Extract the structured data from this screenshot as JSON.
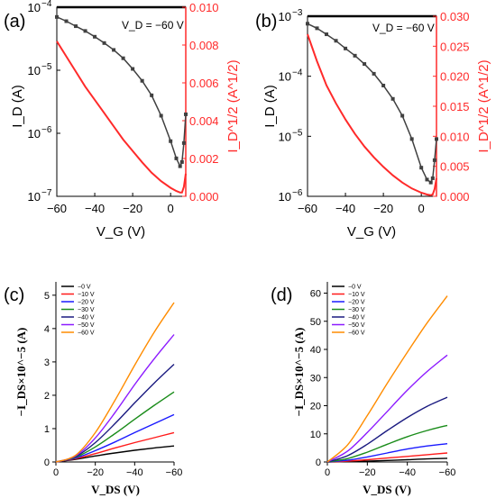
{
  "chart_data": [
    {
      "id": "a",
      "panel_label": "(a)",
      "type": "line",
      "annotation": "V_D = −60 V",
      "xlabel": "V_G (V)",
      "ylabel_left": "I_D (A)",
      "ylabel_right": "I_D^1/2 (A^1/2)",
      "xlim": [
        -60,
        8
      ],
      "ylim_left_log": [
        -7,
        -4
      ],
      "ylim_right": [
        0,
        0.01
      ],
      "x_ticks": [
        -60,
        -40,
        -20,
        0
      ],
      "x_tick_labels": [
        "−60",
        "−40",
        "−20",
        "0"
      ],
      "y_left_ticks": [
        -7,
        -6,
        -5,
        -4
      ],
      "y_left_tick_labels": [
        "10",
        "10",
        "10",
        "10"
      ],
      "y_left_tick_exponents": [
        "−7",
        "−6",
        "−5",
        "−4"
      ],
      "y_right_ticks": [
        0,
        0.002,
        0.004,
        0.006,
        0.008,
        0.01
      ],
      "y_right_tick_labels": [
        "0.000",
        "0.002",
        "0.004",
        "0.006",
        "0.008",
        "0.010"
      ],
      "series": [
        {
          "axis": "left",
          "scale": "log",
          "color": "#404040",
          "markers": true,
          "x": [
            -60,
            -55,
            -50,
            -45,
            -40,
            -35,
            -30,
            -25,
            -20,
            -15,
            -10,
            -5,
            0,
            3,
            5,
            6,
            7,
            8
          ],
          "y": [
            7e-05,
            6e-05,
            5e-05,
            4.2e-05,
            3.4e-05,
            2.7e-05,
            2.1e-05,
            1.55e-05,
            1.05e-05,
            6.8e-06,
            4e-06,
            1.9e-06,
            7.5e-07,
            4e-07,
            3e-07,
            3.5e-07,
            7e-07,
            2e-06
          ]
        },
        {
          "axis": "right",
          "scale": "linear",
          "color": "#ff2a2a",
          "markers": false,
          "x": [
            -60,
            -55,
            -50,
            -45,
            -40,
            -35,
            -30,
            -25,
            -20,
            -15,
            -10,
            -5,
            0,
            3,
            5,
            6,
            7,
            8
          ],
          "y": [
            0.0082,
            0.0074,
            0.0066,
            0.0058,
            0.0051,
            0.0044,
            0.0037,
            0.003,
            0.0024,
            0.0018,
            0.00125,
            0.0008,
            0.00045,
            0.00028,
            0.0002,
            0.0002,
            0.0005,
            0.0012
          ]
        }
      ]
    },
    {
      "id": "b",
      "panel_label": "(b)",
      "type": "line",
      "annotation": "V_D = −60 V",
      "xlabel": "V_G (V)",
      "ylabel_left": "I_D (A)",
      "ylabel_right": "I_D^1/2 (A^1/2)",
      "xlim": [
        -60,
        8
      ],
      "ylim_left_log": [
        -6,
        -3
      ],
      "ylim_right": [
        0,
        0.03
      ],
      "x_ticks": [
        -60,
        -40,
        -20,
        0
      ],
      "x_tick_labels": [
        "−60",
        "−40",
        "−20",
        "0"
      ],
      "y_left_ticks": [
        -6,
        -5,
        -4,
        -3
      ],
      "y_left_tick_labels": [
        "10",
        "10",
        "10",
        "10"
      ],
      "y_left_tick_exponents": [
        "−6",
        "−5",
        "−4",
        "−3"
      ],
      "y_right_ticks": [
        0,
        0.005,
        0.01,
        0.015,
        0.02,
        0.025,
        0.03
      ],
      "y_right_tick_labels": [
        "0.000",
        "0.005",
        "0.010",
        "0.015",
        "0.020",
        "0.025",
        "0.030"
      ],
      "series": [
        {
          "axis": "left",
          "scale": "log",
          "color": "#404040",
          "markers": true,
          "x": [
            -60,
            -55,
            -50,
            -45,
            -40,
            -35,
            -30,
            -25,
            -20,
            -15,
            -10,
            -5,
            0,
            3,
            5,
            6,
            7,
            8
          ],
          "y": [
            0.00075,
            0.00063,
            0.0005,
            0.00039,
            0.00029,
            0.00022,
            0.00016,
            0.00011,
            7e-05,
            4.2e-05,
            2.2e-05,
            9e-06,
            3e-06,
            1.9e-06,
            1.7e-06,
            2e-06,
            4e-06,
            9e-06
          ]
        },
        {
          "axis": "right",
          "scale": "linear",
          "color": "#ff2a2a",
          "markers": false,
          "x": [
            -60,
            -55,
            -50,
            -45,
            -40,
            -35,
            -30,
            -25,
            -20,
            -15,
            -10,
            -5,
            0,
            3,
            5,
            6,
            7,
            8
          ],
          "y": [
            0.027,
            0.0225,
            0.0185,
            0.0155,
            0.0128,
            0.0104,
            0.0083,
            0.0065,
            0.0049,
            0.0035,
            0.0023,
            0.0013,
            0.0006,
            0.0003,
            0.0002,
            0.0003,
            0.0012,
            0.003
          ]
        }
      ]
    },
    {
      "id": "c",
      "panel_label": "(c)",
      "type": "line",
      "xlabel": "V_DS (V)",
      "ylabel": "−I_DS×10^−5 (A)",
      "xlim": [
        0,
        -60
      ],
      "ylim": [
        0,
        5.4
      ],
      "x_ticks": [
        0,
        -20,
        -40,
        -60
      ],
      "x_tick_labels": [
        "0",
        "−20",
        "−40",
        "−60"
      ],
      "y_ticks": [
        0,
        1,
        2,
        3,
        4,
        5
      ],
      "y_tick_labels": [
        "0",
        "1",
        "2",
        "3",
        "4",
        "5"
      ],
      "legend_position": "top-left",
      "series": [
        {
          "name": "−0 V",
          "color": "#000000",
          "x": [
            0,
            -10,
            -20,
            -30,
            -40,
            -50,
            -60
          ],
          "y": [
            0,
            0.08,
            0.18,
            0.27,
            0.35,
            0.42,
            0.48
          ]
        },
        {
          "name": "−10 V",
          "color": "#ff1a1a",
          "x": [
            0,
            -10,
            -20,
            -30,
            -40,
            -50,
            -60
          ],
          "y": [
            0,
            0.1,
            0.25,
            0.42,
            0.58,
            0.73,
            0.88
          ]
        },
        {
          "name": "−20 V",
          "color": "#1a1aff",
          "x": [
            0,
            -10,
            -20,
            -30,
            -40,
            -50,
            -60
          ],
          "y": [
            0,
            0.12,
            0.34,
            0.6,
            0.88,
            1.15,
            1.42
          ]
        },
        {
          "name": "−30 V",
          "color": "#1a8c1a",
          "x": [
            0,
            -10,
            -20,
            -30,
            -40,
            -50,
            -60
          ],
          "y": [
            0,
            0.14,
            0.45,
            0.85,
            1.28,
            1.7,
            2.1
          ]
        },
        {
          "name": "−40 V",
          "color": "#1a1a80",
          "x": [
            0,
            -10,
            -20,
            -30,
            -40,
            -50,
            -60
          ],
          "y": [
            0,
            0.16,
            0.58,
            1.15,
            1.77,
            2.37,
            2.93
          ]
        },
        {
          "name": "−50 V",
          "color": "#8c1aff",
          "x": [
            0,
            -10,
            -20,
            -30,
            -40,
            -50,
            -60
          ],
          "y": [
            0,
            0.18,
            0.72,
            1.48,
            2.32,
            3.1,
            3.82
          ]
        },
        {
          "name": "−60 V",
          "color": "#ff8c00",
          "x": [
            0,
            -10,
            -20,
            -30,
            -40,
            -50,
            -60
          ],
          "y": [
            0,
            0.2,
            0.88,
            1.85,
            2.9,
            3.9,
            4.78
          ]
        }
      ]
    },
    {
      "id": "d",
      "panel_label": "(d)",
      "type": "line",
      "xlabel": "V_DS (V)",
      "ylabel": "−I_DS×10^−5 (A)",
      "xlim": [
        0,
        -60
      ],
      "ylim": [
        0,
        64
      ],
      "x_ticks": [
        0,
        -20,
        -40,
        -60
      ],
      "x_tick_labels": [
        "0",
        "−20",
        "−40",
        "−60"
      ],
      "y_ticks": [
        0,
        10,
        20,
        30,
        40,
        50,
        60
      ],
      "y_tick_labels": [
        "0",
        "10",
        "20",
        "30",
        "40",
        "50",
        "60"
      ],
      "legend_position": "top-left",
      "series": [
        {
          "name": "−0 V",
          "color": "#000000",
          "x": [
            0,
            -10,
            -20,
            -30,
            -40,
            -50,
            -60
          ],
          "y": [
            0,
            0.1,
            0.3,
            0.55,
            0.8,
            1.1,
            1.3
          ]
        },
        {
          "name": "−10 V",
          "color": "#ff1a1a",
          "x": [
            0,
            -10,
            -20,
            -30,
            -40,
            -50,
            -60
          ],
          "y": [
            0,
            0.3,
            0.8,
            1.4,
            2.0,
            2.6,
            3.2
          ]
        },
        {
          "name": "−20 V",
          "color": "#1a1aff",
          "x": [
            0,
            -10,
            -20,
            -30,
            -40,
            -50,
            -60
          ],
          "y": [
            0,
            0.6,
            1.8,
            3.2,
            4.6,
            5.7,
            6.5
          ]
        },
        {
          "name": "−30 V",
          "color": "#1a8c1a",
          "x": [
            0,
            -10,
            -20,
            -30,
            -40,
            -50,
            -60
          ],
          "y": [
            0,
            1.2,
            3.5,
            6.3,
            9.0,
            11.2,
            13.0
          ]
        },
        {
          "name": "−40 V",
          "color": "#1a1a80",
          "x": [
            0,
            -10,
            -20,
            -30,
            -40,
            -50,
            -60
          ],
          "y": [
            0,
            2.2,
            6.3,
            11.2,
            15.8,
            19.8,
            23.0
          ]
        },
        {
          "name": "−50 V",
          "color": "#8c1aff",
          "x": [
            0,
            -10,
            -20,
            -30,
            -40,
            -50,
            -60
          ],
          "y": [
            0,
            3.8,
            10.5,
            18.0,
            25.5,
            32.2,
            38.0
          ]
        },
        {
          "name": "−60 V",
          "color": "#ff8c00",
          "x": [
            0,
            -10,
            -20,
            -30,
            -40,
            -50,
            -60
          ],
          "y": [
            0,
            6.0,
            16.5,
            28.0,
            39.0,
            49.5,
            59.0
          ]
        }
      ]
    }
  ]
}
